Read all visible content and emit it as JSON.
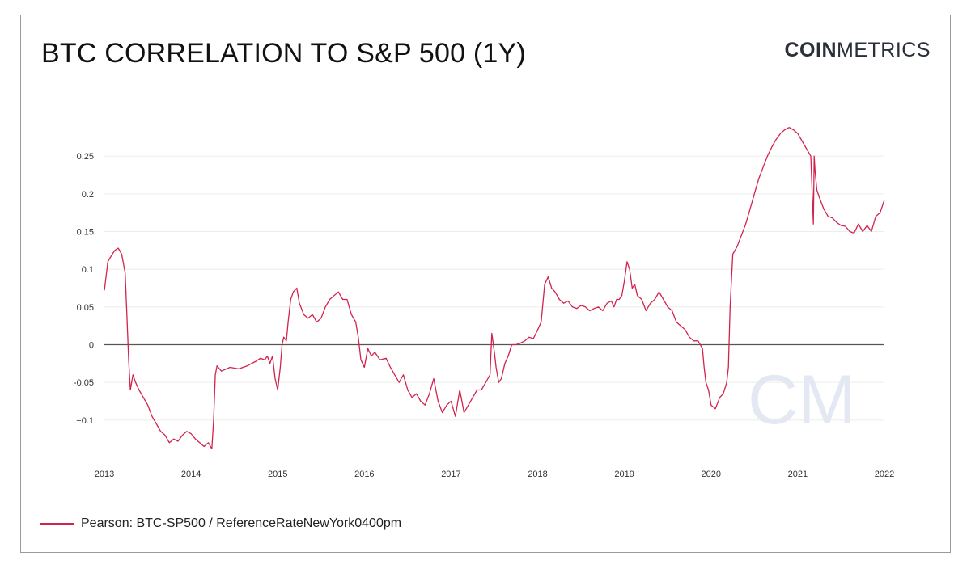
{
  "title": "BTC CORRELATION TO S&P 500 (1Y)",
  "brand": {
    "bold": "COIN",
    "light": "METRICS",
    "watermark": "CM"
  },
  "colors": {
    "series": "#d2234d",
    "zero_line": "#555555",
    "grid": "#ececec",
    "watermark": "#e3e8f2"
  },
  "legend": {
    "label": "Pearson: BTC-SP500 / ReferenceRateNewYork0400pm"
  },
  "chart_data": {
    "type": "line",
    "title": "BTC CORRELATION TO S&P 500 (1Y)",
    "xlabel": "",
    "ylabel": "",
    "x_ticks": [
      "2013",
      "2014",
      "2015",
      "2016",
      "2017",
      "2018",
      "2019",
      "2020",
      "2021",
      "2022"
    ],
    "y_ticks": [
      {
        "value": 0.25,
        "label": "0.25"
      },
      {
        "value": 0.2,
        "label": "0.2"
      },
      {
        "value": 0.15,
        "label": "0.15"
      },
      {
        "value": 0.1,
        "label": "0.1"
      },
      {
        "value": 0.05,
        "label": "0.05"
      },
      {
        "value": 0,
        "label": "0"
      },
      {
        "value": -0.05,
        "label": "-0.05"
      },
      {
        "value": -0.1,
        "label": "−0.1"
      }
    ],
    "xlim": [
      2013.0,
      2022.0
    ],
    "ylim": [
      -0.15,
      0.3
    ],
    "grid": true,
    "legend_position": "bottom-left",
    "series": [
      {
        "name": "Pearson: BTC-SP500 / ReferenceRateNewYork0400pm",
        "color": "#d2234d",
        "x": [
          2013.0,
          2013.04,
          2013.08,
          2013.12,
          2013.16,
          2013.2,
          2013.24,
          2013.26,
          2013.28,
          2013.3,
          2013.33,
          2013.36,
          2013.4,
          2013.45,
          2013.5,
          2013.55,
          2013.6,
          2013.65,
          2013.7,
          2013.75,
          2013.8,
          2013.85,
          2013.9,
          2013.95,
          2014.0,
          2014.05,
          2014.1,
          2014.15,
          2014.2,
          2014.24,
          2014.26,
          2014.28,
          2014.3,
          2014.35,
          2014.45,
          2014.55,
          2014.65,
          2014.75,
          2014.8,
          2014.85,
          2014.88,
          2014.91,
          2014.94,
          2014.97,
          2015.0,
          2015.03,
          2015.05,
          2015.07,
          2015.1,
          2015.12,
          2015.15,
          2015.18,
          2015.22,
          2015.25,
          2015.3,
          2015.35,
          2015.4,
          2015.45,
          2015.5,
          2015.55,
          2015.6,
          2015.65,
          2015.7,
          2015.75,
          2015.8,
          2015.85,
          2015.9,
          2015.93,
          2015.96,
          2016.0,
          2016.04,
          2016.08,
          2016.12,
          2016.18,
          2016.25,
          2016.3,
          2016.35,
          2016.4,
          2016.45,
          2016.5,
          2016.55,
          2016.6,
          2016.65,
          2016.7,
          2016.75,
          2016.8,
          2016.85,
          2016.9,
          2016.95,
          2017.0,
          2017.05,
          2017.1,
          2017.15,
          2017.2,
          2017.25,
          2017.3,
          2017.35,
          2017.4,
          2017.45,
          2017.47,
          2017.5,
          2017.52,
          2017.55,
          2017.58,
          2017.62,
          2017.66,
          2017.7,
          2017.75,
          2017.8,
          2017.85,
          2017.9,
          2017.95,
          2018.0,
          2018.04,
          2018.08,
          2018.12,
          2018.16,
          2018.2,
          2018.25,
          2018.3,
          2018.35,
          2018.4,
          2018.45,
          2018.5,
          2018.55,
          2018.6,
          2018.65,
          2018.7,
          2018.75,
          2018.8,
          2018.85,
          2018.88,
          2018.91,
          2018.94,
          2018.97,
          2019.0,
          2019.03,
          2019.06,
          2019.09,
          2019.12,
          2019.15,
          2019.2,
          2019.25,
          2019.3,
          2019.35,
          2019.4,
          2019.45,
          2019.5,
          2019.55,
          2019.6,
          2019.65,
          2019.7,
          2019.75,
          2019.8,
          2019.85,
          2019.9,
          2019.92,
          2019.94,
          2019.97,
          2020.0,
          2020.05,
          2020.1,
          2020.14,
          2020.16,
          2020.18,
          2020.2,
          2020.22,
          2020.25,
          2020.3,
          2020.35,
          2020.4,
          2020.45,
          2020.5,
          2020.55,
          2020.6,
          2020.65,
          2020.7,
          2020.75,
          2020.8,
          2020.85,
          2020.9,
          2020.95,
          2021.0,
          2021.05,
          2021.1,
          2021.15,
          2021.18,
          2021.19,
          2021.2,
          2021.22,
          2021.25,
          2021.3,
          2021.35,
          2021.4,
          2021.45,
          2021.5,
          2021.55,
          2021.6,
          2021.65,
          2021.7,
          2021.75,
          2021.8,
          2021.85,
          2021.9,
          2021.95,
          2022.0
        ],
        "y": [
          0.072,
          0.11,
          0.118,
          0.125,
          0.128,
          0.12,
          0.095,
          0.04,
          -0.02,
          -0.06,
          -0.04,
          -0.05,
          -0.06,
          -0.07,
          -0.08,
          -0.095,
          -0.105,
          -0.115,
          -0.12,
          -0.13,
          -0.125,
          -0.128,
          -0.12,
          -0.115,
          -0.118,
          -0.125,
          -0.13,
          -0.135,
          -0.13,
          -0.138,
          -0.1,
          -0.04,
          -0.028,
          -0.035,
          -0.03,
          -0.032,
          -0.028,
          -0.022,
          -0.018,
          -0.02,
          -0.015,
          -0.025,
          -0.015,
          -0.045,
          -0.06,
          -0.03,
          0.0,
          0.01,
          0.005,
          0.03,
          0.06,
          0.07,
          0.075,
          0.055,
          0.04,
          0.035,
          0.04,
          0.03,
          0.035,
          0.05,
          0.06,
          0.065,
          0.07,
          0.06,
          0.06,
          0.04,
          0.03,
          0.01,
          -0.02,
          -0.03,
          -0.005,
          -0.015,
          -0.01,
          -0.02,
          -0.018,
          -0.03,
          -0.04,
          -0.05,
          -0.04,
          -0.06,
          -0.07,
          -0.065,
          -0.075,
          -0.08,
          -0.065,
          -0.045,
          -0.075,
          -0.09,
          -0.08,
          -0.075,
          -0.095,
          -0.06,
          -0.09,
          -0.08,
          -0.07,
          -0.06,
          -0.06,
          -0.05,
          -0.04,
          0.015,
          -0.01,
          -0.03,
          -0.05,
          -0.045,
          -0.025,
          -0.015,
          0.0,
          0.0,
          0.002,
          0.005,
          0.01,
          0.008,
          0.02,
          0.03,
          0.08,
          0.09,
          0.075,
          0.07,
          0.06,
          0.055,
          0.058,
          0.05,
          0.048,
          0.052,
          0.05,
          0.045,
          0.048,
          0.05,
          0.045,
          0.055,
          0.058,
          0.05,
          0.06,
          0.06,
          0.065,
          0.085,
          0.11,
          0.1,
          0.075,
          0.08,
          0.065,
          0.06,
          0.045,
          0.055,
          0.06,
          0.07,
          0.06,
          0.05,
          0.045,
          0.03,
          0.025,
          0.02,
          0.01,
          0.005,
          0.005,
          -0.005,
          -0.03,
          -0.05,
          -0.06,
          -0.08,
          -0.085,
          -0.07,
          -0.065,
          -0.058,
          -0.05,
          -0.03,
          0.05,
          0.12,
          0.13,
          0.145,
          0.16,
          0.18,
          0.2,
          0.22,
          0.235,
          0.25,
          0.262,
          0.272,
          0.28,
          0.285,
          0.288,
          0.285,
          0.28,
          0.27,
          0.26,
          0.25,
          0.16,
          0.25,
          0.23,
          0.205,
          0.195,
          0.18,
          0.17,
          0.168,
          0.162,
          0.158,
          0.157,
          0.15,
          0.148,
          0.16,
          0.15,
          0.158,
          0.15,
          0.17,
          0.175,
          0.192
        ]
      }
    ]
  }
}
